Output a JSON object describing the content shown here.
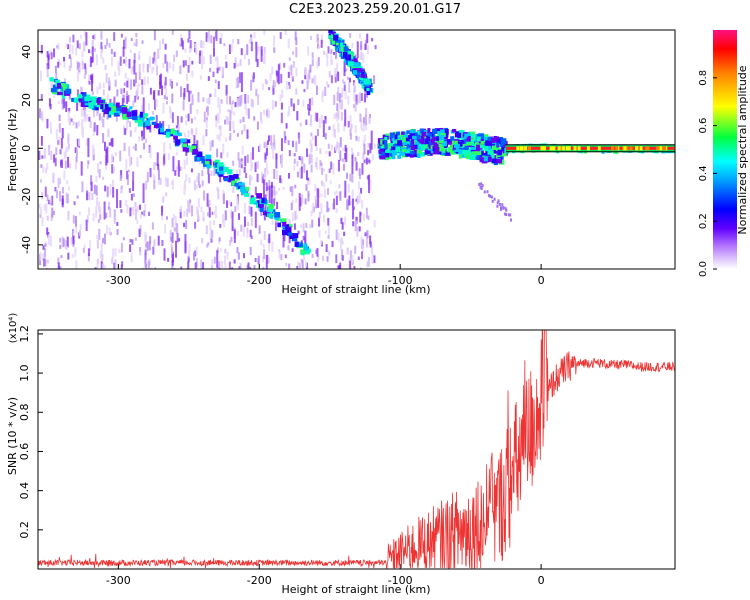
{
  "title": "C2E3.2023.259.20.01.G17",
  "chart_data": [
    {
      "type": "heatmap",
      "xlabel": "Height of straight line (km)",
      "ylabel": "Frequency (Hz)",
      "xlim": [
        -357,
        95
      ],
      "ylim": [
        -50,
        49
      ],
      "xticks": [
        -300,
        -200,
        -100,
        0
      ],
      "yticks": [
        -40,
        -20,
        0,
        20,
        40
      ],
      "grid": false,
      "colorbar": {
        "label": "Normalized spectral amplitude",
        "range": [
          0,
          1
        ],
        "ticks": [
          0.0,
          0.2,
          0.4,
          0.6,
          0.8
        ],
        "tick_labels": [
          "0.0",
          "0.2",
          "0.4",
          "0.6",
          "0.8"
        ],
        "colormap": [
          "#ffffff",
          "#c8a0f8",
          "#7000ff",
          "#0000ff",
          "#00ffff",
          "#00ff00",
          "#ffff00",
          "#ff0000",
          "#ff1080"
        ]
      },
      "ridges": [
        {
          "points": [
            [
              -350,
              27
            ],
            [
              -320,
              19
            ],
            [
              -290,
              14
            ],
            [
              -260,
              5
            ],
            [
              -230,
              -8
            ],
            [
              -200,
              -22
            ],
            [
              -180,
              -34
            ],
            [
              -165,
              -44
            ]
          ]
        },
        {
          "points": [
            [
              -150,
              48
            ],
            [
              -135,
              36
            ],
            [
              -122,
              25
            ]
          ]
        },
        {
          "points": [
            [
              -115,
              0
            ],
            [
              -95,
              2
            ],
            [
              -75,
              3
            ],
            [
              -55,
              2
            ],
            [
              -40,
              0
            ],
            [
              -25,
              -1
            ]
          ]
        },
        {
          "points": [
            [
              -25,
              0
            ],
            [
              0,
              0.5
            ],
            [
              30,
              0
            ],
            [
              60,
              0
            ],
            [
              95,
              0
            ]
          ]
        }
      ],
      "noise_region_x": [
        -357,
        -118
      ]
    },
    {
      "type": "line",
      "xlabel": "Height of straight line (km)",
      "ylabel": "SNR (10 * v/v)",
      "y_multiplier": "(x10⁴)",
      "xlim": [
        -357,
        95
      ],
      "ylim": [
        0,
        1.22
      ],
      "xticks": [
        -300,
        -200,
        -100,
        0
      ],
      "yticks": [
        0.2,
        0.4,
        0.6,
        0.8,
        1.0,
        1.2
      ],
      "ytick_labels": [
        "0.2",
        "0.4",
        "0.6",
        "0.8",
        "1.0",
        "1.2"
      ],
      "grid": false,
      "color": "#ee3333",
      "series": [
        {
          "x": [
            -357,
            -300,
            -250,
            -200,
            -150,
            -110,
            -100,
            -90,
            -80,
            -70,
            -60,
            -50,
            -40,
            -30,
            -25,
            -20,
            -15,
            -10,
            -5,
            0,
            10,
            20,
            30,
            40,
            50,
            60,
            70,
            80,
            95
          ],
          "y": [
            0.03,
            0.03,
            0.03,
            0.03,
            0.03,
            0.03,
            0.07,
            0.1,
            0.12,
            0.14,
            0.16,
            0.18,
            0.22,
            0.28,
            0.36,
            0.44,
            0.54,
            0.62,
            0.72,
            0.82,
            0.96,
            1.03,
            1.05,
            1.05,
            1.04,
            1.04,
            1.03,
            1.03,
            1.03
          ]
        }
      ]
    }
  ]
}
